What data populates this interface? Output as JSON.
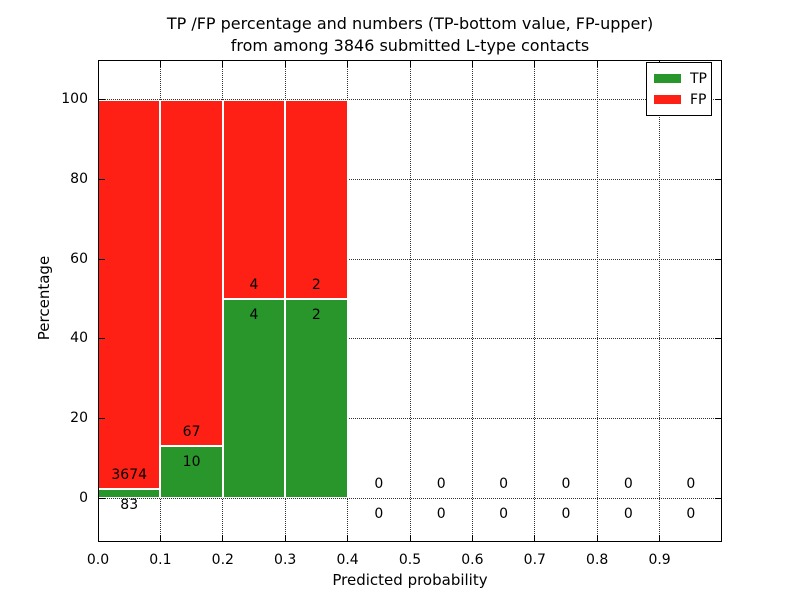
{
  "figure": {
    "title_line1": "TP /FP percentage and numbers (TP-bottom value, FP-upper)",
    "title_line2": "from among 3846 submitted L-type contacts",
    "xlabel": "Predicted probability",
    "ylabel": "Percentage"
  },
  "legend": {
    "items": [
      {
        "label": "TP",
        "color": "#28962b"
      },
      {
        "label": "FP",
        "color": "#ff2015"
      }
    ]
  },
  "chart_data": {
    "type": "bar",
    "stacked": true,
    "title": "TP /FP percentage and numbers (TP-bottom value, FP-upper) from among 3846 submitted L-type contacts",
    "xlabel": "Predicted probability",
    "ylabel": "Percentage",
    "total_submitted_contacts": 3846,
    "bins": [
      "0.0-0.1",
      "0.1-0.2",
      "0.2-0.3",
      "0.3-0.4",
      "0.4-0.5",
      "0.5-0.6",
      "0.6-0.7",
      "0.7-0.8",
      "0.8-0.9",
      "0.9-1.0"
    ],
    "series": [
      {
        "name": "TP",
        "color": "#28962b",
        "counts": [
          83,
          10,
          4,
          2,
          0,
          0,
          0,
          0,
          0,
          0
        ],
        "percent": [
          2.2,
          13.0,
          50,
          50,
          0,
          0,
          0,
          0,
          0,
          0
        ]
      },
      {
        "name": "FP",
        "color": "#ff2015",
        "counts": [
          3674,
          67,
          4,
          2,
          0,
          0,
          0,
          0,
          0,
          0
        ],
        "percent": [
          97.8,
          87.0,
          50,
          50,
          0,
          0,
          0,
          0,
          0,
          0
        ]
      }
    ],
    "xticks": [
      "0.0",
      "0.1",
      "0.2",
      "0.3",
      "0.4",
      "0.5",
      "0.6",
      "0.7",
      "0.8",
      "0.9"
    ],
    "yticks": [
      0,
      20,
      40,
      60,
      80,
      100
    ],
    "xlim": [
      0.0,
      1.0
    ],
    "ylim_display": [
      -11,
      110
    ],
    "grid": "dotted",
    "legend_position": "upper right"
  }
}
